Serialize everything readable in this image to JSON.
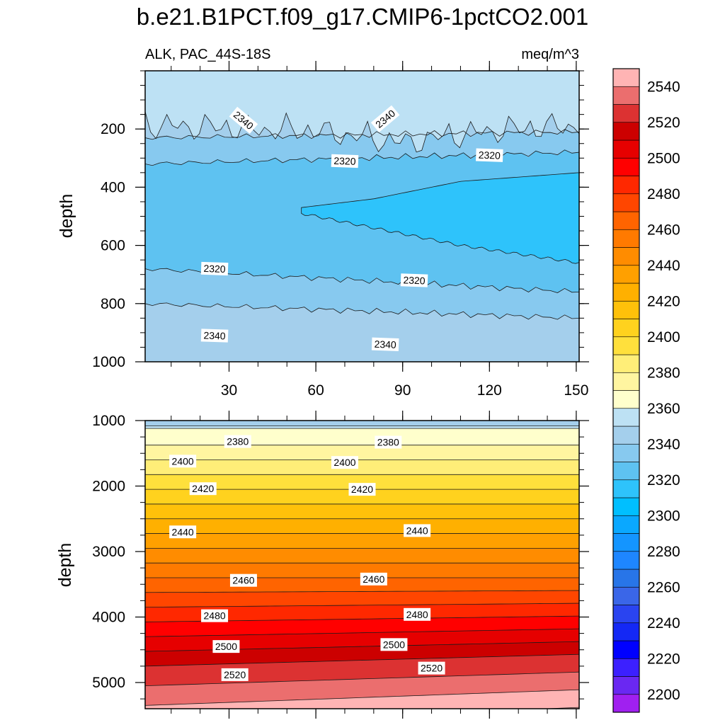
{
  "chart_data": {
    "type": "contour",
    "title": "b.e21.B1PCT.f09_g17.CMIP6-1pctCO2.001",
    "subtitle_left": "ALK, PAC_44S-18S",
    "subtitle_right": "meq/m^3",
    "xlabel": "",
    "ylabel": "depth",
    "xlim": [
      1,
      151
    ],
    "x_ticks": [
      30,
      60,
      90,
      120,
      150
    ],
    "x_tick_labels": [
      "30",
      "60",
      "90",
      "120",
      "150"
    ],
    "upper_panel": {
      "ylim": [
        1000,
        0
      ],
      "y_ticks": [
        200,
        400,
        600,
        800,
        1000
      ],
      "y_tick_labels": [
        "200",
        "400",
        "600",
        "800",
        "1000"
      ],
      "bands": [
        {
          "x": [
            1,
            151
          ],
          "top": [
            0,
            0
          ],
          "bottom": [
            230,
            210
          ],
          "value": 2340
        },
        {
          "x": [
            1,
            151
          ],
          "top": [
            230,
            210
          ],
          "bottom": [
            320,
            280
          ],
          "value": 2330
        },
        {
          "x": [
            1,
            151
          ],
          "top": [
            320,
            280
          ],
          "bottom": [
            680,
            760
          ],
          "value": 2320
        },
        {
          "x": [
            1,
            151
          ],
          "top": [
            680,
            760
          ],
          "bottom": [
            800,
            850
          ],
          "value": 2330
        },
        {
          "x": [
            1,
            151
          ],
          "top": [
            800,
            850
          ],
          "bottom": [
            1000,
            1000
          ],
          "value": 2340
        }
      ],
      "regions": [
        {
          "value": 2350,
          "x": [
            1,
            30,
            60,
            90,
            120,
            151
          ],
          "top": [
            0,
            0,
            0,
            0,
            0,
            0
          ],
          "bottom": [
            140,
            150,
            160,
            200,
            160,
            140
          ]
        },
        {
          "value": 2310,
          "x": [
            55,
            80,
            110,
            151
          ],
          "top": [
            470,
            440,
            380,
            350
          ],
          "bottom": [
            490,
            540,
            600,
            660
          ]
        }
      ],
      "contour_labels": [
        {
          "text": "2340",
          "x": 35,
          "depth": 170
        },
        {
          "text": "2340",
          "x": 84,
          "depth": 165
        },
        {
          "text": "2320",
          "x": 70,
          "depth": 310
        },
        {
          "text": "2320",
          "x": 120,
          "depth": 290
        },
        {
          "text": "2320",
          "x": 25,
          "depth": 680
        },
        {
          "text": "2320",
          "x": 94,
          "depth": 720
        },
        {
          "text": "2340",
          "x": 25,
          "depth": 910
        },
        {
          "text": "2340",
          "x": 84,
          "depth": 940
        }
      ]
    },
    "lower_panel": {
      "ylim": [
        1000,
        5400
      ],
      "y_ticks": [
        1000,
        2000,
        3000,
        4000,
        5000
      ],
      "y_tick_labels": [
        "1000",
        "2000",
        "3000",
        "4000",
        "5000"
      ],
      "contour_labels": [
        {
          "text": "2380",
          "x": 33,
          "depth": 1320
        },
        {
          "text": "2380",
          "x": 85,
          "depth": 1330
        },
        {
          "text": "2400",
          "x": 14,
          "depth": 1620
        },
        {
          "text": "2400",
          "x": 70,
          "depth": 1640
        },
        {
          "text": "2420",
          "x": 21,
          "depth": 2040
        },
        {
          "text": "2420",
          "x": 76,
          "depth": 2050
        },
        {
          "text": "2440",
          "x": 14,
          "depth": 2700
        },
        {
          "text": "2440",
          "x": 95,
          "depth": 2680
        },
        {
          "text": "2460",
          "x": 35,
          "depth": 3440
        },
        {
          "text": "2460",
          "x": 80,
          "depth": 3420
        },
        {
          "text": "2480",
          "x": 25,
          "depth": 3980
        },
        {
          "text": "2480",
          "x": 95,
          "depth": 3960
        },
        {
          "text": "2500",
          "x": 29,
          "depth": 4450
        },
        {
          "text": "2500",
          "x": 87,
          "depth": 4420
        },
        {
          "text": "2520",
          "x": 32,
          "depth": 4880
        },
        {
          "text": "2520",
          "x": 100,
          "depth": 4780
        }
      ]
    },
    "levels": [
      2200,
      2210,
      2220,
      2230,
      2240,
      2250,
      2260,
      2270,
      2280,
      2290,
      2300,
      2310,
      2320,
      2330,
      2340,
      2350,
      2360,
      2370,
      2380,
      2390,
      2400,
      2410,
      2420,
      2430,
      2440,
      2450,
      2460,
      2470,
      2480,
      2490,
      2500,
      2510,
      2520,
      2530,
      2540,
      2550
    ],
    "colorbar": {
      "labels": [
        "2200",
        "2220",
        "2240",
        "2260",
        "2280",
        "2300",
        "2320",
        "2340",
        "2360",
        "2380",
        "2400",
        "2420",
        "2440",
        "2460",
        "2480",
        "2500",
        "2520",
        "2540"
      ],
      "colors": [
        "#a020f0",
        "#6a28f2",
        "#3c20ff",
        "#0000ff",
        "#1428f5",
        "#2a44f0",
        "#3a66e8",
        "#2875e8",
        "#1e86ff",
        "#1495ff",
        "#0aa8ff",
        "#00bfff",
        "#2ec3fb",
        "#5ec2f1",
        "#87c9ef",
        "#a4cfec",
        "#bde1f4",
        "#ffffcc",
        "#fff5a0",
        "#ffee78",
        "#ffe03c",
        "#ffd21e",
        "#ffc10a",
        "#ffb000",
        "#ffa000",
        "#ff8c00",
        "#ff7a00",
        "#ff6400",
        "#ff4600",
        "#ff2800",
        "#ff0000",
        "#e60000",
        "#cc0000",
        "#dc3232",
        "#eb6e6e",
        "#ffb4b4"
      ]
    }
  }
}
